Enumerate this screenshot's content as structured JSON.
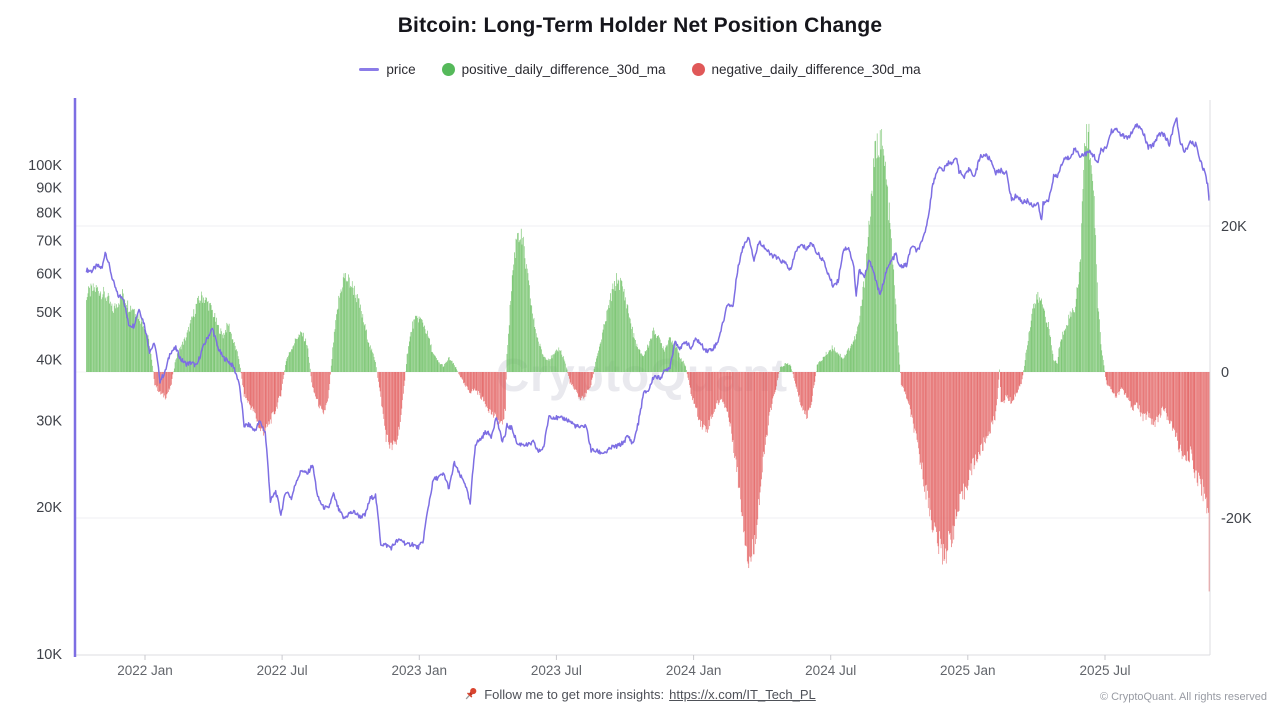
{
  "title": "Bitcoin: Long-Term Holder Net Position Change",
  "watermark": "CryptoQuant",
  "legend": {
    "items": [
      {
        "label": "price",
        "type": "line",
        "color": "#8b7ce8"
      },
      {
        "label": "positive_daily_difference_30d_ma",
        "type": "dot",
        "color": "#55b95a"
      },
      {
        "label": "negative_daily_difference_30d_ma",
        "type": "dot",
        "color": "#e05858"
      }
    ]
  },
  "footer": {
    "text": "Follow me to get more insights:",
    "link": "https://x.com/IT_Tech_PL",
    "pin_color": "#d9442f"
  },
  "copyright": "© CryptoQuant. All rights reserved",
  "axes": {
    "left_ticks": [
      "10K",
      "20K",
      "30K",
      "40K",
      "50K",
      "60K",
      "70K",
      "80K",
      "90K",
      "100K"
    ],
    "right_ticks": [
      "20K",
      "0",
      "-20K"
    ],
    "x_ticks": [
      "2022 Jan",
      "2022 Jul",
      "2023 Jan",
      "2023 Jul",
      "2024 Jan",
      "2024 Jul",
      "2025 Jan",
      "2025 Jul"
    ]
  },
  "colors": {
    "price": "#7d6ee3",
    "bar_positive": "#6cbf63",
    "bar_negative": "#e25c5c",
    "watermark": "#e9e9ee",
    "grid": "#efeff3",
    "axis": "#dcdce0",
    "tick_label": "#3f4249",
    "x_label": "#62656b"
  },
  "chart_data": {
    "type": "mixed",
    "title": "Bitcoin: Long-Term Holder Net Position Change",
    "series": [
      {
        "name": "price",
        "type": "line",
        "axis": "left",
        "scale": "log",
        "unit": "USD",
        "color": "#7d6ee3"
      },
      {
        "name": "positive_daily_difference_30d_ma",
        "type": "bar",
        "axis": "right",
        "unit": "BTC/day (thousands)",
        "color": "#6cbf63"
      },
      {
        "name": "negative_daily_difference_30d_ma",
        "type": "bar",
        "axis": "right",
        "unit": "BTC/day (thousands)",
        "color": "#e25c5c"
      }
    ],
    "left_axis": {
      "scale": "log",
      "ticks_k": [
        10,
        20,
        30,
        40,
        50,
        60,
        70,
        80,
        90,
        100
      ]
    },
    "right_axis": {
      "scale": "linear",
      "ticks_k": [
        20,
        0,
        -20
      ]
    },
    "x_range": [
      "2021-10-15",
      "2025-11-18"
    ],
    "point_format": [
      "date",
      "price_thousand_usd",
      "net_position_change_30dma_thousand_btc"
    ],
    "points": [
      [
        "2021-10-15",
        61.0,
        10.5
      ],
      [
        "2021-10-22",
        60.7,
        11.2
      ],
      [
        "2021-10-29",
        62.2,
        11.4
      ],
      [
        "2021-11-05",
        61.5,
        10.9
      ],
      [
        "2021-11-09",
        66.5,
        10.5
      ],
      [
        "2021-11-12",
        64.3,
        10.2
      ],
      [
        "2021-11-19",
        58.1,
        8.4
      ],
      [
        "2021-11-26",
        54.0,
        9.6
      ],
      [
        "2021-12-03",
        53.6,
        10.8
      ],
      [
        "2021-12-10",
        47.2,
        9.0
      ],
      [
        "2021-12-17",
        46.9,
        8.8
      ],
      [
        "2021-12-24",
        50.8,
        7.6
      ],
      [
        "2021-12-31",
        47.3,
        6.4
      ],
      [
        "2022-01-07",
        41.6,
        3.9
      ],
      [
        "2022-01-14",
        43.1,
        -1.6
      ],
      [
        "2022-01-21",
        36.2,
        -2.9
      ],
      [
        "2022-01-28",
        37.8,
        -3.4
      ],
      [
        "2022-02-04",
        41.5,
        -2.2
      ],
      [
        "2022-02-11",
        42.2,
        1.8
      ],
      [
        "2022-02-18",
        40.0,
        3.5
      ],
      [
        "2022-02-25",
        39.2,
        4.8
      ],
      [
        "2022-03-04",
        39.4,
        7.0
      ],
      [
        "2022-03-11",
        38.8,
        9.3
      ],
      [
        "2022-03-18",
        41.9,
        10.4
      ],
      [
        "2022-03-25",
        44.3,
        9.6
      ],
      [
        "2022-04-01",
        46.3,
        8.3
      ],
      [
        "2022-04-08",
        42.3,
        6.2
      ],
      [
        "2022-04-15",
        40.4,
        5.0
      ],
      [
        "2022-04-22",
        39.7,
        6.6
      ],
      [
        "2022-04-29",
        38.6,
        4.1
      ],
      [
        "2022-05-06",
        36.0,
        1.9
      ],
      [
        "2022-05-13",
        29.3,
        -3.1
      ],
      [
        "2022-05-20",
        29.4,
        -4.4
      ],
      [
        "2022-05-27",
        28.6,
        -5.6
      ],
      [
        "2022-06-03",
        29.9,
        -7.9
      ],
      [
        "2022-06-10",
        28.4,
        -8.2
      ],
      [
        "2022-06-17",
        20.5,
        -6.7
      ],
      [
        "2022-06-24",
        21.5,
        -5.2
      ],
      [
        "2022-07-01",
        19.3,
        -3.0
      ],
      [
        "2022-07-08",
        21.6,
        1.6
      ],
      [
        "2022-07-15",
        20.8,
        3.2
      ],
      [
        "2022-07-22",
        22.7,
        4.7
      ],
      [
        "2022-07-29",
        23.8,
        5.3
      ],
      [
        "2022-08-05",
        23.3,
        3.8
      ],
      [
        "2022-08-12",
        24.4,
        -2.2
      ],
      [
        "2022-08-19",
        20.9,
        -4.1
      ],
      [
        "2022-08-26",
        20.0,
        -5.9
      ],
      [
        "2022-09-02",
        19.8,
        -3.9
      ],
      [
        "2022-09-09",
        21.2,
        4.2
      ],
      [
        "2022-09-16",
        19.7,
        9.8
      ],
      [
        "2022-09-23",
        18.9,
        13.1
      ],
      [
        "2022-09-30",
        19.4,
        12.4
      ],
      [
        "2022-10-07",
        19.5,
        11.2
      ],
      [
        "2022-10-14",
        19.1,
        9.0
      ],
      [
        "2022-10-21",
        19.2,
        6.1
      ],
      [
        "2022-10-28",
        20.8,
        3.4
      ],
      [
        "2022-11-04",
        21.1,
        1.5
      ],
      [
        "2022-11-11",
        16.8,
        -3.6
      ],
      [
        "2022-11-18",
        16.7,
        -8.8
      ],
      [
        "2022-11-25",
        16.5,
        -10.4
      ],
      [
        "2022-12-02",
        17.0,
        -9.7
      ],
      [
        "2022-12-09",
        17.1,
        -5.4
      ],
      [
        "2022-12-16",
        16.7,
        2.3
      ],
      [
        "2022-12-23",
        16.8,
        6.4
      ],
      [
        "2022-12-30",
        16.5,
        7.5
      ],
      [
        "2023-01-06",
        16.9,
        6.8
      ],
      [
        "2023-01-13",
        19.9,
        4.9
      ],
      [
        "2023-01-20",
        22.7,
        2.4
      ],
      [
        "2023-01-27",
        23.0,
        1.3
      ],
      [
        "2023-02-03",
        23.3,
        0.8
      ],
      [
        "2023-02-10",
        21.8,
        1.9
      ],
      [
        "2023-02-17",
        24.6,
        0.9
      ],
      [
        "2023-02-24",
        23.2,
        -0.4
      ],
      [
        "2023-03-03",
        22.4,
        -1.9
      ],
      [
        "2023-03-10",
        20.2,
        -2.7
      ],
      [
        "2023-03-17",
        26.9,
        -2.4
      ],
      [
        "2023-03-24",
        27.5,
        -3.3
      ],
      [
        "2023-03-31",
        28.5,
        -4.4
      ],
      [
        "2023-04-07",
        27.9,
        -5.6
      ],
      [
        "2023-04-14",
        30.5,
        -6.4
      ],
      [
        "2023-04-21",
        27.3,
        -7.4
      ],
      [
        "2023-04-26",
        28.0,
        -5.0
      ],
      [
        "2023-04-28",
        29.3,
        2.5
      ],
      [
        "2023-05-05",
        28.9,
        13.0
      ],
      [
        "2023-05-12",
        26.8,
        19.5
      ],
      [
        "2023-05-19",
        26.9,
        17.8
      ],
      [
        "2023-05-26",
        26.7,
        12.6
      ],
      [
        "2023-06-02",
        27.1,
        7.3
      ],
      [
        "2023-06-09",
        25.9,
        4.1
      ],
      [
        "2023-06-16",
        26.5,
        2.1
      ],
      [
        "2023-06-23",
        30.7,
        1.8
      ],
      [
        "2023-06-30",
        30.5,
        2.3
      ],
      [
        "2023-07-07",
        30.3,
        3.3
      ],
      [
        "2023-07-14",
        30.3,
        1.5
      ],
      [
        "2023-07-21",
        29.9,
        -1.4
      ],
      [
        "2023-07-28",
        29.3,
        -2.6
      ],
      [
        "2023-08-04",
        29.0,
        -3.7
      ],
      [
        "2023-08-11",
        29.4,
        -3.1
      ],
      [
        "2023-08-18",
        26.1,
        -1.8
      ],
      [
        "2023-08-25",
        26.0,
        1.9
      ],
      [
        "2023-09-01",
        25.8,
        4.6
      ],
      [
        "2023-09-08",
        25.9,
        7.8
      ],
      [
        "2023-09-15",
        26.5,
        10.9
      ],
      [
        "2023-09-22",
        26.6,
        12.8
      ],
      [
        "2023-09-29",
        27.0,
        11.6
      ],
      [
        "2023-10-06",
        27.9,
        8.7
      ],
      [
        "2023-10-13",
        26.9,
        5.2
      ],
      [
        "2023-10-20",
        29.7,
        3.0
      ],
      [
        "2023-10-27",
        34.1,
        2.2
      ],
      [
        "2023-11-03",
        34.7,
        3.9
      ],
      [
        "2023-11-10",
        37.1,
        5.8
      ],
      [
        "2023-11-17",
        36.6,
        4.4
      ],
      [
        "2023-11-24",
        37.8,
        3.1
      ],
      [
        "2023-12-01",
        38.7,
        4.9
      ],
      [
        "2023-12-08",
        43.7,
        3.6
      ],
      [
        "2023-12-15",
        42.0,
        2.0
      ],
      [
        "2023-12-22",
        43.7,
        0.8
      ],
      [
        "2023-12-29",
        42.1,
        -2.9
      ],
      [
        "2024-01-05",
        44.2,
        -5.1
      ],
      [
        "2024-01-12",
        42.8,
        -7.2
      ],
      [
        "2024-01-19",
        41.7,
        -7.9
      ],
      [
        "2024-01-26",
        42.0,
        -6.0
      ],
      [
        "2024-02-02",
        43.2,
        -4.3
      ],
      [
        "2024-02-09",
        47.1,
        -3.8
      ],
      [
        "2024-02-16",
        52.1,
        -5.6
      ],
      [
        "2024-02-23",
        51.3,
        -9.4
      ],
      [
        "2024-03-01",
        62.4,
        -14.8
      ],
      [
        "2024-03-08",
        68.3,
        -20.6
      ],
      [
        "2024-03-15",
        71.5,
        -26.2
      ],
      [
        "2024-03-22",
        63.8,
        -24.0
      ],
      [
        "2024-03-29",
        69.9,
        -17.3
      ],
      [
        "2024-04-05",
        67.9,
        -10.9
      ],
      [
        "2024-04-12",
        65.7,
        -5.8
      ],
      [
        "2024-04-19",
        64.9,
        -2.7
      ],
      [
        "2024-04-26",
        63.8,
        0.6
      ],
      [
        "2024-05-03",
        62.9,
        1.1
      ],
      [
        "2024-05-10",
        60.8,
        0.9
      ],
      [
        "2024-05-17",
        67.0,
        -2.1
      ],
      [
        "2024-05-24",
        68.5,
        -4.6
      ],
      [
        "2024-05-31",
        67.5,
        -6.2
      ],
      [
        "2024-06-07",
        69.3,
        -3.9
      ],
      [
        "2024-06-14",
        66.0,
        0.9
      ],
      [
        "2024-06-21",
        64.3,
        1.8
      ],
      [
        "2024-06-28",
        60.3,
        2.7
      ],
      [
        "2024-07-05",
        56.7,
        3.4
      ],
      [
        "2024-07-12",
        57.9,
        2.6
      ],
      [
        "2024-07-19",
        67.1,
        1.9
      ],
      [
        "2024-07-26",
        67.9,
        3.1
      ],
      [
        "2024-08-02",
        61.5,
        4.3
      ],
      [
        "2024-08-05",
        54.0,
        5.0
      ],
      [
        "2024-08-09",
        60.9,
        6.8
      ],
      [
        "2024-08-16",
        58.9,
        12.5
      ],
      [
        "2024-08-23",
        64.1,
        21.0
      ],
      [
        "2024-08-30",
        59.1,
        29.5
      ],
      [
        "2024-09-06",
        53.9,
        32.4
      ],
      [
        "2024-09-13",
        60.0,
        27.6
      ],
      [
        "2024-09-20",
        63.3,
        18.9
      ],
      [
        "2024-09-27",
        65.8,
        8.7
      ],
      [
        "2024-10-01",
        62.0,
        2.4
      ],
      [
        "2024-10-04",
        62.1,
        -1.6
      ],
      [
        "2024-10-11",
        62.4,
        -3.4
      ],
      [
        "2024-10-18",
        68.4,
        -6.2
      ],
      [
        "2024-10-25",
        66.6,
        -9.8
      ],
      [
        "2024-11-01",
        69.5,
        -13.5
      ],
      [
        "2024-11-08",
        76.5,
        -17.2
      ],
      [
        "2024-11-15",
        91.0,
        -20.8
      ],
      [
        "2024-11-22",
        98.9,
        -23.4
      ],
      [
        "2024-11-29",
        97.5,
        -24.9
      ],
      [
        "2024-12-06",
        101.2,
        -23.7
      ],
      [
        "2024-12-13",
        101.4,
        -21.2
      ],
      [
        "2024-12-17",
        104.0,
        -19.8
      ],
      [
        "2024-12-20",
        97.2,
        -18.6
      ],
      [
        "2024-12-27",
        94.2,
        -16.4
      ],
      [
        "2025-01-03",
        98.2,
        -13.9
      ],
      [
        "2025-01-10",
        94.7,
        -12.2
      ],
      [
        "2025-01-17",
        104.1,
        -11.0
      ],
      [
        "2025-01-24",
        104.8,
        -9.4
      ],
      [
        "2025-01-31",
        102.4,
        -7.7
      ],
      [
        "2025-02-07",
        96.5,
        -5.9
      ],
      [
        "2025-02-12",
        97.0,
        0.4
      ],
      [
        "2025-02-14",
        97.5,
        -4.6
      ],
      [
        "2025-02-21",
        96.2,
        -3.3
      ],
      [
        "2025-02-28",
        84.7,
        -4.1
      ],
      [
        "2025-03-07",
        86.8,
        -2.8
      ],
      [
        "2025-03-14",
        83.9,
        -1.2
      ],
      [
        "2025-03-21",
        84.4,
        3.9
      ],
      [
        "2025-03-28",
        82.6,
        8.7
      ],
      [
        "2025-04-04",
        83.8,
        10.2
      ],
      [
        "2025-04-09",
        76.5,
        9.5
      ],
      [
        "2025-04-11",
        83.4,
        9.1
      ],
      [
        "2025-04-18",
        84.5,
        6.3
      ],
      [
        "2025-04-25",
        94.7,
        1.7
      ],
      [
        "2025-04-30",
        94.5,
        1.2
      ],
      [
        "2025-05-02",
        96.9,
        3.1
      ],
      [
        "2025-05-09",
        102.9,
        5.9
      ],
      [
        "2025-05-16",
        103.5,
        7.6
      ],
      [
        "2025-05-23",
        107.9,
        8.8
      ],
      [
        "2025-05-30",
        104.6,
        14.2
      ],
      [
        "2025-06-04",
        105.0,
        27.5
      ],
      [
        "2025-06-08",
        105.8,
        33.4
      ],
      [
        "2025-06-13",
        106.1,
        31.0
      ],
      [
        "2025-06-18",
        104.2,
        22.4
      ],
      [
        "2025-06-23",
        101.0,
        9.6
      ],
      [
        "2025-06-27",
        107.1,
        3.8
      ],
      [
        "2025-07-04",
        108.2,
        -1.3
      ],
      [
        "2025-07-11",
        117.5,
        -2.6
      ],
      [
        "2025-07-18",
        117.9,
        -3.4
      ],
      [
        "2025-07-25",
        115.0,
        -2.2
      ],
      [
        "2025-08-01",
        113.4,
        -3.6
      ],
      [
        "2025-08-08",
        116.7,
        -5.1
      ],
      [
        "2025-08-14",
        121.0,
        -4.3
      ],
      [
        "2025-08-22",
        116.8,
        -6.4
      ],
      [
        "2025-08-29",
        108.4,
        -5.7
      ],
      [
        "2025-09-05",
        110.2,
        -7.2
      ],
      [
        "2025-09-12",
        115.9,
        -6.1
      ],
      [
        "2025-09-19",
        115.7,
        -4.9
      ],
      [
        "2025-09-26",
        109.7,
        -6.8
      ],
      [
        "2025-10-03",
        122.4,
        -8.3
      ],
      [
        "2025-10-06",
        123.5,
        -9.0
      ],
      [
        "2025-10-10",
        111.6,
        -10.6
      ],
      [
        "2025-10-17",
        106.5,
        -12.4
      ],
      [
        "2025-10-24",
        111.0,
        -11.2
      ],
      [
        "2025-10-31",
        110.1,
        -13.8
      ],
      [
        "2025-11-07",
        101.7,
        -15.3
      ],
      [
        "2025-11-14",
        94.6,
        -17.6
      ],
      [
        "2025-11-17",
        89.0,
        -18.9
      ],
      [
        "2025-11-18",
        84.0,
        -28.5
      ]
    ]
  }
}
